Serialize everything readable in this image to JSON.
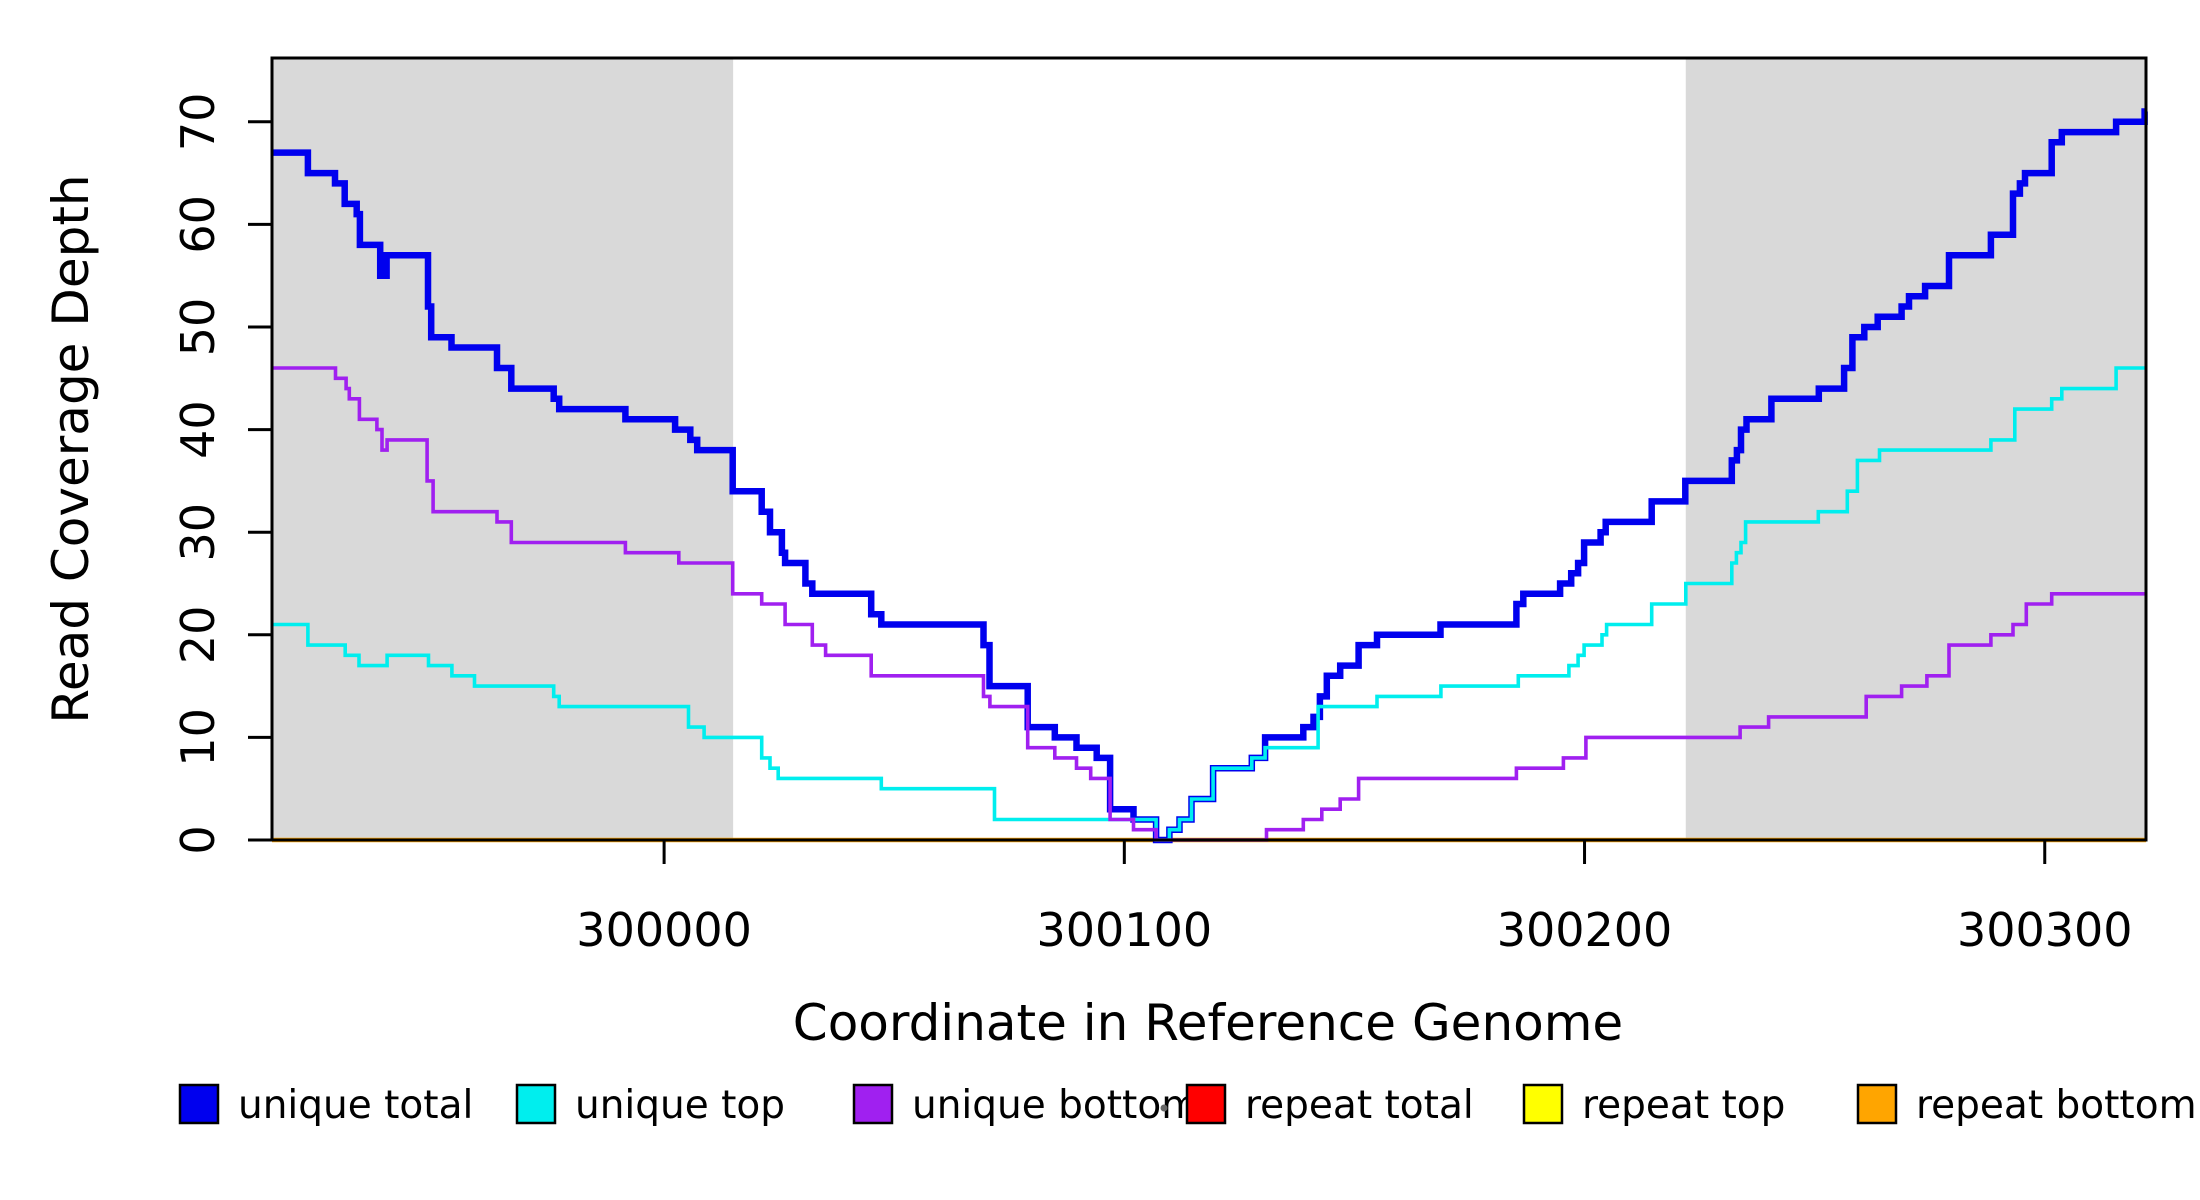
{
  "axes": {
    "x": {
      "label": "Coordinate in Reference Genome",
      "range": [
        299914.8,
        300322.0
      ],
      "ticks": [
        {
          "value": 300000,
          "label": "300000"
        },
        {
          "value": 300100,
          "label": "300100"
        },
        {
          "value": 300200,
          "label": "300200"
        },
        {
          "value": 300300,
          "label": "300300"
        }
      ]
    },
    "y": {
      "label": "Read Coverage Depth",
      "range": [
        0,
        76
      ],
      "ticks": [
        {
          "value": 0,
          "label": "0"
        },
        {
          "value": 10,
          "label": "10"
        },
        {
          "value": 20,
          "label": "20"
        },
        {
          "value": 30,
          "label": "30"
        },
        {
          "value": 40,
          "label": "40"
        },
        {
          "value": 50,
          "label": "50"
        },
        {
          "value": 60,
          "label": "60"
        },
        {
          "value": 70,
          "label": "70"
        }
      ]
    }
  },
  "legend": {
    "items": [
      {
        "label": "unique total",
        "color": "#0000EE"
      },
      {
        "label": "unique top",
        "color": "#00EEEE"
      },
      {
        "label": "unique bottom",
        "color": "#A020F0"
      },
      {
        "label": "repeat total",
        "color": "#FF0000"
      },
      {
        "label": "repeat top",
        "color": "#FFFF00"
      },
      {
        "label": "repeat bottom",
        "color": "#FFA500"
      }
    ]
  },
  "chart_data": {
    "type": "line",
    "subtype": "step",
    "title": "",
    "xlabel": "Coordinate in Reference Genome",
    "ylabel": "Read Coverage Depth",
    "xlim": [
      299914.8,
      300322.0
    ],
    "ylim": [
      0,
      76
    ],
    "grid": false,
    "legend_position": "bottom",
    "shaded_regions": [
      {
        "x0": 299914.8,
        "x1": 300015.0,
        "color": "#D9D9D9"
      },
      {
        "x0": 300222.0,
        "x1": 300322.0,
        "color": "#D9D9D9"
      }
    ],
    "series": [
      {
        "name": "repeat total",
        "color": "#FF0000",
        "width": 3.6,
        "points": [
          [
            299914.8,
            0
          ]
        ]
      },
      {
        "name": "repeat top",
        "color": "#FFFF00",
        "width": 3.6,
        "points": [
          [
            299914.8,
            0
          ]
        ]
      },
      {
        "name": "repeat bottom",
        "color": "#FFA500",
        "width": 4.5,
        "points": [
          [
            299914.8,
            0
          ]
        ]
      },
      {
        "name": "unique total",
        "color": "#0000EE",
        "width": 6.5,
        "points": [
          [
            299914.8,
            67
          ],
          [
            299922.6,
            65
          ],
          [
            299928.5,
            64
          ],
          [
            299930.6,
            62
          ],
          [
            299933.2,
            61
          ],
          [
            299933.9,
            58
          ],
          [
            299938.3,
            55
          ],
          [
            299939.7,
            57
          ],
          [
            299948.7,
            52
          ],
          [
            299949.4,
            49
          ],
          [
            299953.8,
            48
          ],
          [
            299963.7,
            46
          ],
          [
            299966.8,
            44
          ],
          [
            299976.0,
            43
          ],
          [
            299977.2,
            42
          ],
          [
            299991.6,
            41
          ],
          [
            300002.4,
            40
          ],
          [
            300005.7,
            39
          ],
          [
            300007.2,
            38
          ],
          [
            300014.9,
            34
          ],
          [
            300021.2,
            32
          ],
          [
            300023.0,
            30
          ],
          [
            300025.6,
            28
          ],
          [
            300026.3,
            27
          ],
          [
            300030.7,
            25
          ],
          [
            300032.2,
            24
          ],
          [
            300045.0,
            22
          ],
          [
            300047.2,
            21
          ],
          [
            300069.4,
            19
          ],
          [
            300070.7,
            15
          ],
          [
            300079.0,
            11
          ],
          [
            300084.9,
            10
          ],
          [
            300089.6,
            9
          ],
          [
            300094.0,
            8
          ],
          [
            300096.9,
            3
          ],
          [
            300102.0,
            2
          ],
          [
            300106.9,
            0
          ],
          [
            300109.8,
            1
          ],
          [
            300112.0,
            2
          ],
          [
            300114.6,
            4
          ],
          [
            300119.3,
            7
          ],
          [
            300127.7,
            8
          ],
          [
            300130.6,
            10
          ],
          [
            300138.9,
            11
          ],
          [
            300141.1,
            12
          ],
          [
            300142.5,
            14
          ],
          [
            300144.0,
            16
          ],
          [
            300146.9,
            17
          ],
          [
            300150.9,
            19
          ],
          [
            300154.9,
            20
          ],
          [
            300168.7,
            21
          ],
          [
            300185.2,
            23
          ],
          [
            300186.7,
            24
          ],
          [
            300194.7,
            25
          ],
          [
            300197.1,
            26
          ],
          [
            300198.6,
            27
          ],
          [
            300199.9,
            29
          ],
          [
            300203.5,
            30
          ],
          [
            300204.6,
            31
          ],
          [
            300214.6,
            33
          ],
          [
            300221.9,
            35
          ],
          [
            300232.0,
            37
          ],
          [
            300233.1,
            38
          ],
          [
            300234.0,
            40
          ],
          [
            300235.2,
            41
          ],
          [
            300240.6,
            43
          ],
          [
            300250.9,
            44
          ],
          [
            300256.4,
            46
          ],
          [
            300258.2,
            49
          ],
          [
            300260.8,
            50
          ],
          [
            300263.7,
            51
          ],
          [
            300268.9,
            52
          ],
          [
            300270.5,
            53
          ],
          [
            300274.0,
            54
          ],
          [
            300279.2,
            57
          ],
          [
            300288.3,
            59
          ],
          [
            300293.1,
            63
          ],
          [
            300294.6,
            64
          ],
          [
            300295.7,
            65
          ],
          [
            300301.5,
            68
          ],
          [
            300303.7,
            69
          ],
          [
            300315.5,
            70
          ],
          [
            300321.7,
            71
          ]
        ]
      },
      {
        "name": "unique top",
        "color": "#00EEEE",
        "width": 3.6,
        "points": [
          [
            299914.8,
            21
          ],
          [
            299922.6,
            19
          ],
          [
            299930.7,
            18
          ],
          [
            299933.7,
            17
          ],
          [
            299939.8,
            18
          ],
          [
            299948.8,
            17
          ],
          [
            299953.9,
            16
          ],
          [
            299958.8,
            15
          ],
          [
            299976.0,
            14
          ],
          [
            299977.2,
            13
          ],
          [
            300005.3,
            11
          ],
          [
            300008.7,
            10
          ],
          [
            300021.2,
            8
          ],
          [
            300023.0,
            7
          ],
          [
            300024.8,
            6
          ],
          [
            300047.2,
            5
          ],
          [
            300071.8,
            2
          ],
          [
            300106.9,
            0
          ],
          [
            300109.8,
            1
          ],
          [
            300112.0,
            2
          ],
          [
            300114.6,
            4
          ],
          [
            300119.3,
            7
          ],
          [
            300127.7,
            8
          ],
          [
            300130.6,
            9
          ],
          [
            300142.1,
            13
          ],
          [
            300154.9,
            14
          ],
          [
            300168.8,
            15
          ],
          [
            300185.6,
            16
          ],
          [
            300196.6,
            17
          ],
          [
            300198.6,
            18
          ],
          [
            300199.9,
            19
          ],
          [
            300203.8,
            20
          ],
          [
            300204.8,
            21
          ],
          [
            300214.6,
            23
          ],
          [
            300222.0,
            25
          ],
          [
            300232.0,
            27
          ],
          [
            300233.0,
            28
          ],
          [
            300234.0,
            29
          ],
          [
            300235.0,
            31
          ],
          [
            300250.8,
            32
          ],
          [
            300257.1,
            34
          ],
          [
            300259.3,
            37
          ],
          [
            300264.1,
            38
          ],
          [
            300288.3,
            39
          ],
          [
            300293.5,
            42
          ],
          [
            300301.5,
            43
          ],
          [
            300303.7,
            44
          ],
          [
            300315.5,
            46
          ]
        ]
      },
      {
        "name": "unique bottom",
        "color": "#A020F0",
        "width": 3.6,
        "points": [
          [
            299914.8,
            46
          ],
          [
            299928.6,
            45
          ],
          [
            299930.9,
            44
          ],
          [
            299931.6,
            43
          ],
          [
            299933.8,
            41
          ],
          [
            299937.6,
            40
          ],
          [
            299938.7,
            38
          ],
          [
            299939.8,
            39
          ],
          [
            299948.5,
            35
          ],
          [
            299949.8,
            32
          ],
          [
            299963.7,
            31
          ],
          [
            299966.8,
            29
          ],
          [
            299991.6,
            28
          ],
          [
            300003.2,
            27
          ],
          [
            300014.9,
            24
          ],
          [
            300021.2,
            23
          ],
          [
            300026.3,
            21
          ],
          [
            300032.2,
            19
          ],
          [
            300035.1,
            18
          ],
          [
            300045.0,
            16
          ],
          [
            300069.4,
            14
          ],
          [
            300070.8,
            13
          ],
          [
            300079.0,
            9
          ],
          [
            300084.9,
            8
          ],
          [
            300089.6,
            7
          ],
          [
            300092.7,
            6
          ],
          [
            300096.9,
            2
          ],
          [
            300102.0,
            1
          ],
          [
            300106.9,
            0
          ],
          [
            300130.9,
            1
          ],
          [
            300138.9,
            2
          ],
          [
            300142.9,
            3
          ],
          [
            300146.9,
            4
          ],
          [
            300150.9,
            6
          ],
          [
            300185.2,
            7
          ],
          [
            300195.4,
            8
          ],
          [
            300200.3,
            10
          ],
          [
            300233.8,
            11
          ],
          [
            300240.0,
            12
          ],
          [
            300261.2,
            14
          ],
          [
            300268.9,
            15
          ],
          [
            300274.4,
            16
          ],
          [
            300279.2,
            19
          ],
          [
            300288.3,
            20
          ],
          [
            300293.1,
            21
          ],
          [
            300296.0,
            23
          ],
          [
            300301.5,
            24
          ]
        ]
      }
    ]
  }
}
